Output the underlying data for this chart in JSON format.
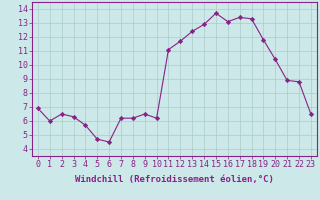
{
  "x": [
    0,
    1,
    2,
    3,
    4,
    5,
    6,
    7,
    8,
    9,
    10,
    11,
    12,
    13,
    14,
    15,
    16,
    17,
    18,
    19,
    20,
    21,
    22,
    23
  ],
  "y": [
    6.9,
    6.0,
    6.5,
    6.3,
    5.7,
    4.7,
    4.5,
    6.2,
    6.2,
    6.5,
    6.2,
    11.1,
    11.7,
    12.4,
    12.9,
    13.7,
    13.1,
    13.4,
    13.3,
    11.8,
    10.4,
    8.9,
    8.8,
    6.5
  ],
  "line_color": "#882288",
  "marker": "D",
  "marker_size": 2.2,
  "bg_color": "#cce8e8",
  "grid_color": "#aacccc",
  "xlabel": "Windchill (Refroidissement éolien,°C)",
  "ylabel": "",
  "xlim": [
    -0.5,
    23.5
  ],
  "ylim": [
    3.5,
    14.5
  ],
  "yticks": [
    4,
    5,
    6,
    7,
    8,
    9,
    10,
    11,
    12,
    13,
    14
  ],
  "xticks": [
    0,
    1,
    2,
    3,
    4,
    5,
    6,
    7,
    8,
    9,
    10,
    11,
    12,
    13,
    14,
    15,
    16,
    17,
    18,
    19,
    20,
    21,
    22,
    23
  ],
  "axis_color": "#882288",
  "label_fontsize": 6.5,
  "tick_fontsize": 6.0
}
